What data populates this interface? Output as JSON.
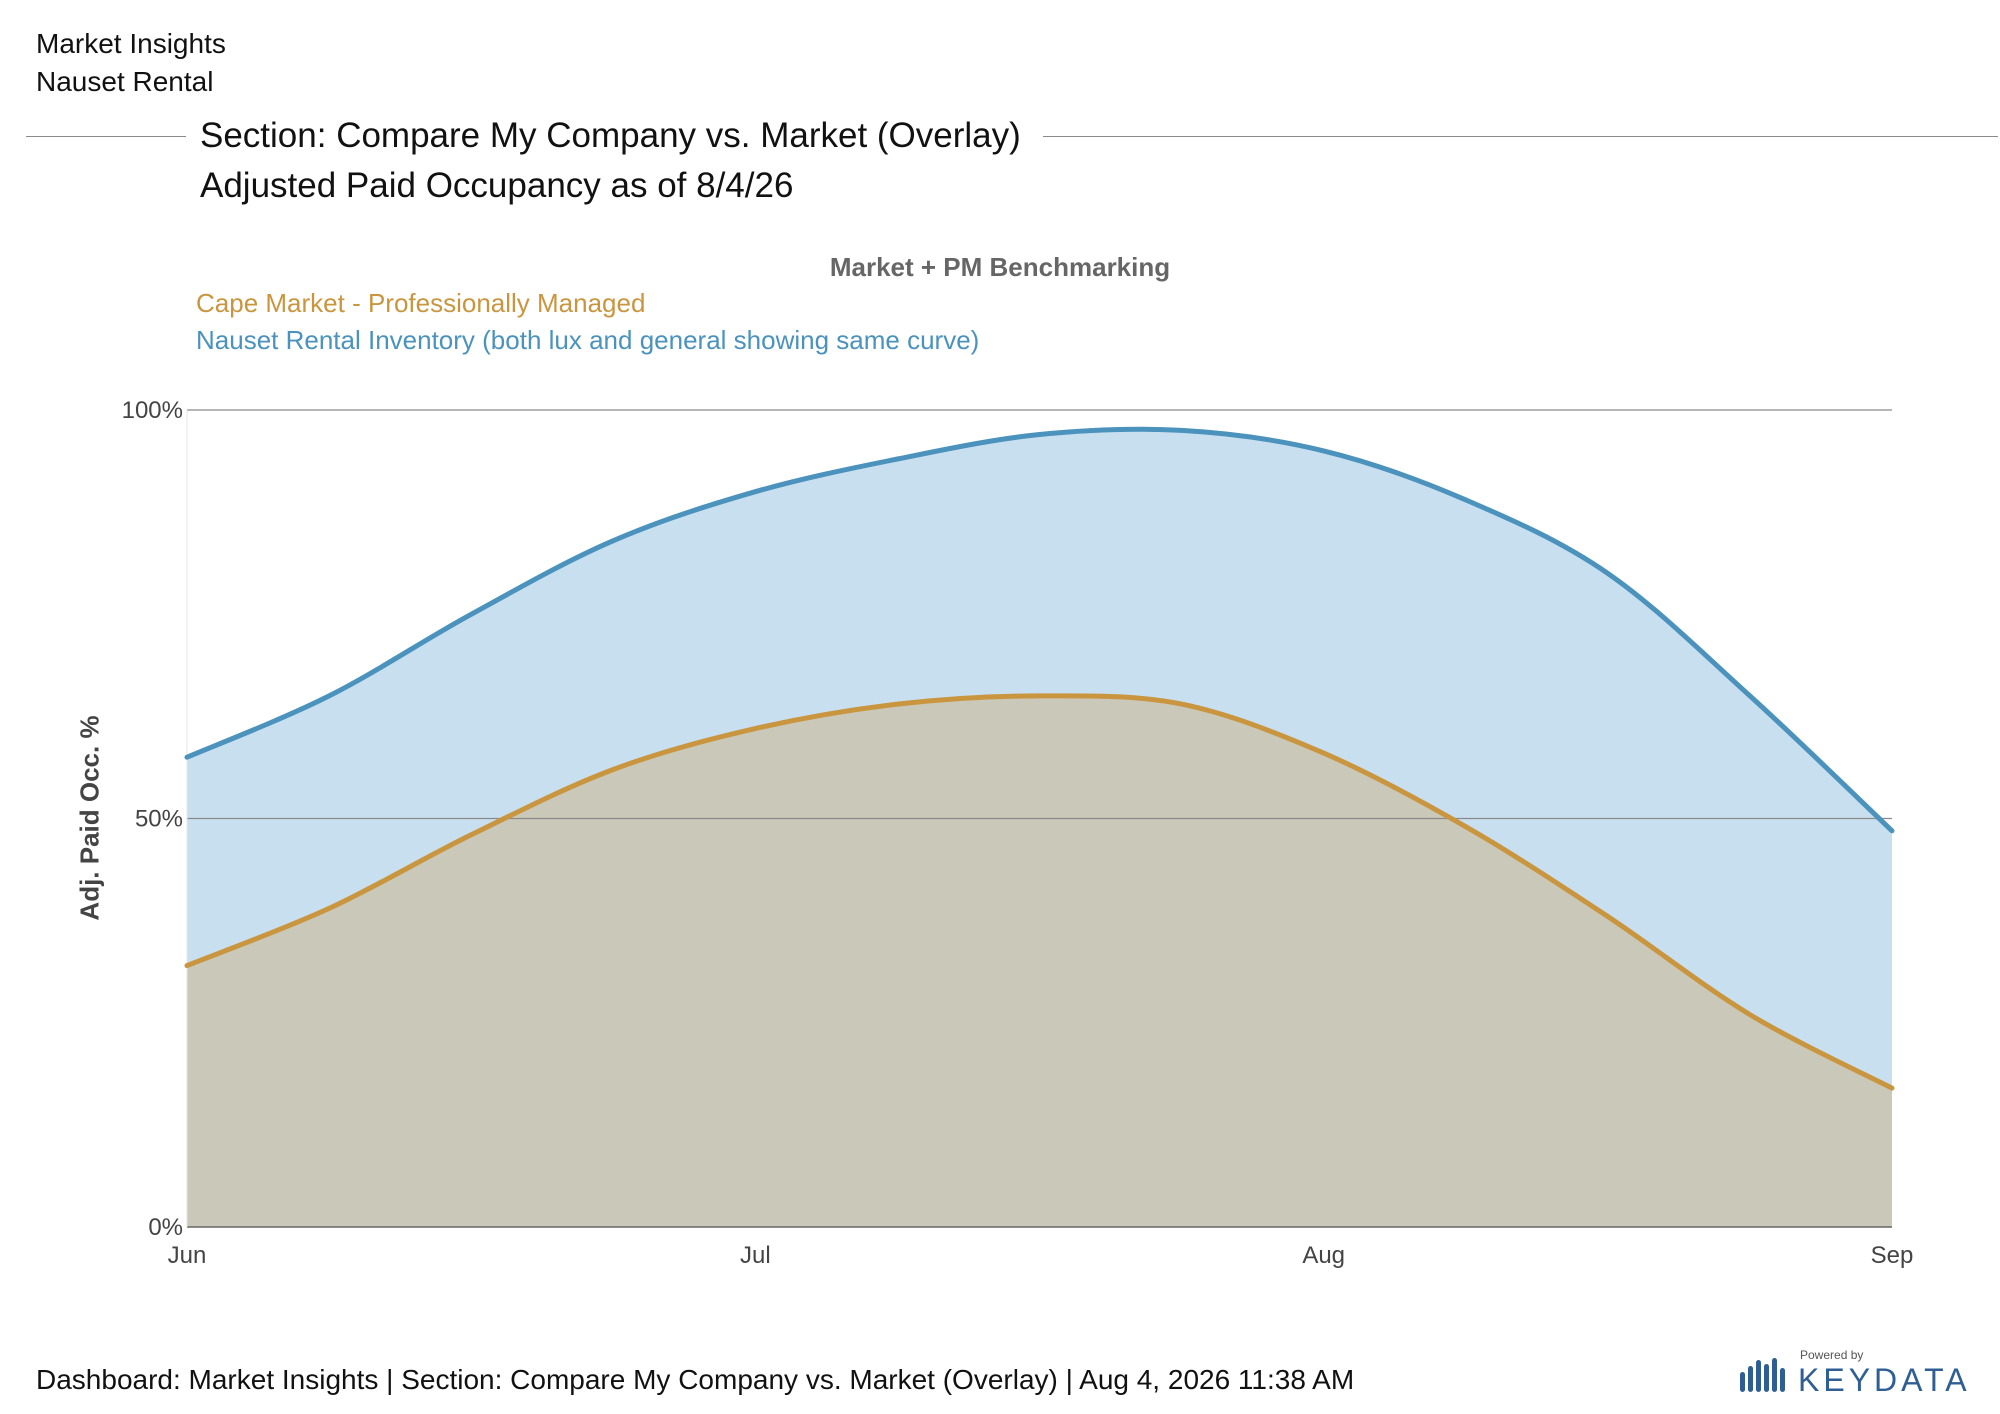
{
  "header": {
    "app_title": "Market Insights",
    "company_name": "Nauset Rental",
    "section_title": "Section: Compare My Company vs. Market (Overlay)",
    "section_subtitle": "Adjusted Paid Occupancy as of 8/4/26"
  },
  "chart_data": {
    "type": "area",
    "title": "Market + PM Benchmarking",
    "ylabel": "Adj. Paid Occ. %",
    "xlabel": "",
    "ylim": [
      0,
      100
    ],
    "y_ticks": [
      "0%",
      "50%",
      "100%"
    ],
    "y_tick_values": [
      0,
      50,
      100
    ],
    "x_ticks": [
      "Jun",
      "Jul",
      "Aug",
      "Sep"
    ],
    "x_tick_values": [
      0,
      1,
      2,
      3
    ],
    "grid": true,
    "legend_position": "top-left",
    "series": [
      {
        "name": "Nauset Rental Inventory (both lux and general showing same curve)",
        "color": "#4b92bd",
        "fill": "#c8dff0",
        "x": [
          0,
          0.25,
          0.5,
          0.75,
          1.0,
          1.25,
          1.5,
          1.75,
          2.0,
          2.25,
          2.5,
          2.75,
          3.0
        ],
        "values": [
          57.5,
          65,
          75,
          84,
          90,
          94,
          97,
          97.5,
          95,
          89,
          80,
          65,
          48.5
        ]
      },
      {
        "name": "Cape Market - Professionally Managed",
        "color": "#c9963f",
        "fill": "#cac8b8",
        "x": [
          0,
          0.25,
          0.5,
          0.75,
          1.0,
          1.25,
          1.5,
          1.75,
          2.0,
          2.25,
          2.5,
          2.75,
          3.0
        ],
        "values": [
          32,
          39,
          48,
          56,
          61,
          64,
          65,
          64,
          58,
          49,
          38,
          26,
          17
        ]
      }
    ]
  },
  "footer": {
    "text": "Dashboard: Market Insights | Section: Compare My Company vs. Market (Overlay) | Aug 4, 2026 11:38 AM"
  },
  "logo": {
    "powered_by": "Powered by",
    "name": "KEYDATA",
    "color": "#2e5e94",
    "icon": "bar-graph-icon"
  }
}
